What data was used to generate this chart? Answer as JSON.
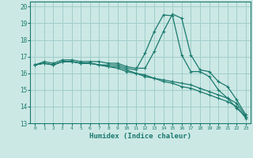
{
  "xlabel": "Humidex (Indice chaleur)",
  "background_color": "#cce8e5",
  "grid_color": "#a0ceca",
  "line_color": "#1a7a6e",
  "x_values": [
    0,
    1,
    2,
    3,
    4,
    5,
    6,
    7,
    8,
    9,
    10,
    11,
    12,
    13,
    14,
    15,
    16,
    17,
    18,
    19,
    20,
    21,
    22,
    23
  ],
  "series": [
    [
      16.5,
      16.7,
      16.6,
      16.8,
      16.8,
      16.7,
      16.7,
      16.7,
      16.6,
      16.6,
      16.4,
      16.3,
      16.3,
      17.3,
      18.5,
      19.55,
      19.3,
      17.1,
      16.2,
      16.1,
      15.5,
      15.2,
      14.4,
      13.5
    ],
    [
      16.5,
      16.6,
      16.5,
      16.7,
      16.7,
      16.6,
      16.6,
      16.5,
      16.5,
      16.5,
      16.3,
      16.2,
      17.2,
      18.5,
      19.5,
      19.45,
      17.1,
      16.1,
      16.1,
      15.8,
      15.0,
      14.5,
      13.9,
      13.4
    ],
    [
      16.5,
      16.6,
      16.5,
      16.7,
      16.7,
      16.6,
      16.6,
      16.5,
      16.4,
      16.4,
      16.2,
      16.0,
      15.9,
      15.7,
      15.6,
      15.5,
      15.4,
      15.3,
      15.1,
      14.9,
      14.7,
      14.5,
      14.2,
      13.4
    ],
    [
      16.5,
      16.6,
      16.5,
      16.7,
      16.7,
      16.6,
      16.6,
      16.5,
      16.4,
      16.3,
      16.1,
      16.0,
      15.8,
      15.7,
      15.5,
      15.4,
      15.2,
      15.1,
      14.9,
      14.7,
      14.5,
      14.3,
      14.0,
      13.3
    ]
  ],
  "xlim": [
    -0.5,
    23.5
  ],
  "ylim": [
    13,
    20.3
  ],
  "yticks": [
    13,
    14,
    15,
    16,
    17,
    18,
    19,
    20
  ],
  "xticks": [
    0,
    1,
    2,
    3,
    4,
    5,
    6,
    7,
    8,
    9,
    10,
    11,
    12,
    13,
    14,
    15,
    16,
    17,
    18,
    19,
    20,
    21,
    22,
    23
  ]
}
